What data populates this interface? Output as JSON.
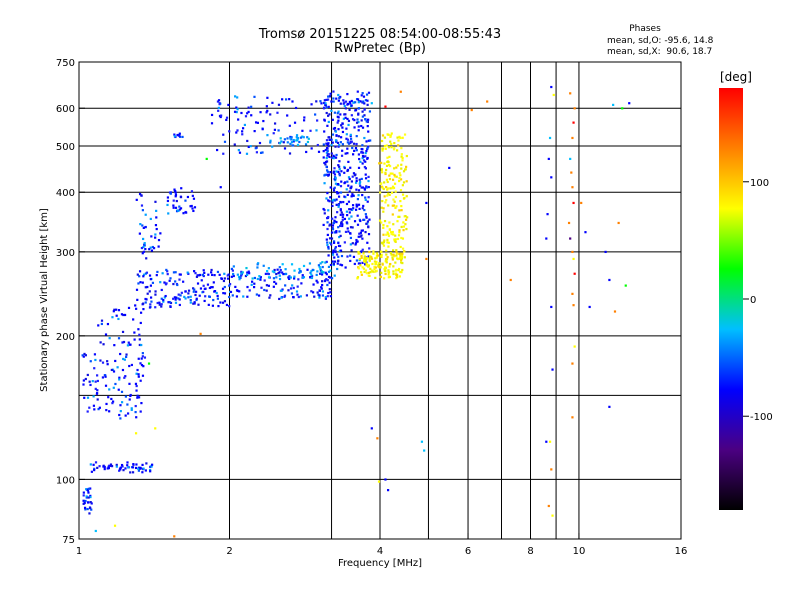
{
  "chart_data": {
    "type": "scatter",
    "title": "Tromsø 20151225 08:54:00-08:55:43",
    "subtitle": "RwPretec (Bp)",
    "xlabel": "Frequency [MHz]",
    "ylabel": "Stationary phase Virtual Height [km]",
    "xscale": "log",
    "yscale": "log",
    "xlim": [
      1,
      16
    ],
    "ylim": [
      75,
      750
    ],
    "xticks": [
      1,
      2,
      4,
      6,
      8,
      10,
      16
    ],
    "xtick_labels": [
      "1",
      "2",
      "4",
      "6",
      "8",
      "10",
      "16"
    ],
    "yticks": [
      75,
      100,
      200,
      300,
      400,
      500,
      600,
      750
    ],
    "ytick_labels": [
      "75",
      "100",
      "200",
      "300",
      "400",
      "500",
      "600",
      "750"
    ],
    "extra_vertical_gridlines": [
      3.2,
      5.0,
      7.0,
      9.0
    ],
    "extra_horizontal_gridlines": [
      150
    ],
    "grid": true,
    "phase_header": {
      "title": "Phases",
      "line_o": "mean, sd,O: -95.6, 14.8",
      "line_x": "mean, sd,X:  90.6, 18.7"
    },
    "colorbar": {
      "label": "[deg]",
      "range": [
        -180,
        180
      ],
      "ticks": [
        100,
        0,
        -100
      ],
      "tick_labels": [
        "100",
        "0",
        "-100"
      ],
      "colors": [
        "#000000",
        "#4b0082",
        "#0000ff",
        "#00bfff",
        "#00ff00",
        "#ffff00",
        "#ff8000",
        "#ff0000"
      ]
    },
    "series": [
      {
        "traces": [
          {
            "f0": 1.01,
            "f1": 1.07,
            "h0": 85,
            "h1": 96,
            "n": 30,
            "c": "blue"
          },
          {
            "f0": 1.05,
            "f1": 1.4,
            "h0": 104,
            "h1": 108,
            "n": 60,
            "c": "blue"
          },
          {
            "f0": 1.02,
            "f1": 1.35,
            "h0": 135,
            "h1": 185,
            "n": 110,
            "c": "blue"
          },
          {
            "f0": 1.1,
            "f1": 1.35,
            "h0": 190,
            "h1": 230,
            "n": 40,
            "c": "blue"
          },
          {
            "f0": 1.3,
            "f1": 2.0,
            "h0": 230,
            "h1": 275,
            "n": 170,
            "c": "blue"
          },
          {
            "f0": 2.0,
            "f1": 3.2,
            "h0": 240,
            "h1": 275,
            "n": 140,
            "c": "blue"
          },
          {
            "f0": 2.0,
            "f1": 3.3,
            "h0": 285,
            "h1": 265,
            "n": 60,
            "c": "sky"
          },
          {
            "f0": 1.3,
            "f1": 1.45,
            "h0": 290,
            "h1": 400,
            "n": 40,
            "c": "blue"
          },
          {
            "f0": 1.5,
            "f1": 1.7,
            "h0": 360,
            "h1": 410,
            "n": 40,
            "c": "blue"
          },
          {
            "f0": 1.55,
            "f1": 1.6,
            "h0": 520,
            "h1": 530,
            "n": 10,
            "c": "blue"
          },
          {
            "f0": 1.85,
            "f1": 3.2,
            "h0": 480,
            "h1": 640,
            "n": 120,
            "c": "blue"
          },
          {
            "f0": 2.4,
            "f1": 2.9,
            "h0": 505,
            "h1": 525,
            "n": 30,
            "c": "sky"
          },
          {
            "f0": 3.1,
            "f1": 3.8,
            "h0": 280,
            "h1": 650,
            "n": 520,
            "c": "blue"
          },
          {
            "f0": 3.6,
            "f1": 4.5,
            "h0": 265,
            "h1": 300,
            "n": 140,
            "c": "yellow"
          },
          {
            "f0": 4.0,
            "f1": 4.5,
            "h0": 290,
            "h1": 530,
            "n": 200,
            "c": "yellow"
          }
        ]
      },
      {
        "points": [
          {
            "x": 1.08,
            "y": 78,
            "c": "#00bfff"
          },
          {
            "x": 1.18,
            "y": 80,
            "c": "#ffff00"
          },
          {
            "x": 1.55,
            "y": 76,
            "c": "#ff8000"
          },
          {
            "x": 1.3,
            "y": 125,
            "c": "#ffff00"
          },
          {
            "x": 1.42,
            "y": 128,
            "c": "#ffff00"
          },
          {
            "x": 1.38,
            "y": 175,
            "c": "#00ff00"
          },
          {
            "x": 1.75,
            "y": 202,
            "c": "#ff8000"
          },
          {
            "x": 1.92,
            "y": 410,
            "c": "#0000ff"
          },
          {
            "x": 1.8,
            "y": 470,
            "c": "#00ff00"
          },
          {
            "x": 3.85,
            "y": 128,
            "c": "#0000ff"
          },
          {
            "x": 3.95,
            "y": 122,
            "c": "#ff8000"
          },
          {
            "x": 4.1,
            "y": 100,
            "c": "#0000ff"
          },
          {
            "x": 4.15,
            "y": 95,
            "c": "#0000ff"
          },
          {
            "x": 3.98,
            "y": 99,
            "c": "#ffff00"
          },
          {
            "x": 4.85,
            "y": 120,
            "c": "#00bfff"
          },
          {
            "x": 4.9,
            "y": 115,
            "c": "#00bfff"
          },
          {
            "x": 4.95,
            "y": 290,
            "c": "#ff8000"
          },
          {
            "x": 4.95,
            "y": 380,
            "c": "#0000ff"
          },
          {
            "x": 5.5,
            "y": 450,
            "c": "#0000ff"
          },
          {
            "x": 6.1,
            "y": 595,
            "c": "#ff8000"
          },
          {
            "x": 6.55,
            "y": 620,
            "c": "#ff8000"
          },
          {
            "x": 7.3,
            "y": 262,
            "c": "#ff8000"
          },
          {
            "x": 4.4,
            "y": 650,
            "c": "#ff8000"
          },
          {
            "x": 4.1,
            "y": 605,
            "c": "#ff0000"
          },
          {
            "x": 3.85,
            "y": 615,
            "c": "#00bfff"
          },
          {
            "x": 8.6,
            "y": 120,
            "c": "#0000ff"
          },
          {
            "x": 8.6,
            "y": 320,
            "c": "#0000ff"
          },
          {
            "x": 8.65,
            "y": 360,
            "c": "#0000ff"
          },
          {
            "x": 8.7,
            "y": 470,
            "c": "#0000ff"
          },
          {
            "x": 8.75,
            "y": 520,
            "c": "#00bfff"
          },
          {
            "x": 8.8,
            "y": 430,
            "c": "#0000ff"
          },
          {
            "x": 8.8,
            "y": 230,
            "c": "#0000ff"
          },
          {
            "x": 8.85,
            "y": 170,
            "c": "#0000ff"
          },
          {
            "x": 8.8,
            "y": 665,
            "c": "#0000ff"
          },
          {
            "x": 8.9,
            "y": 640,
            "c": "#ffff00"
          },
          {
            "x": 8.7,
            "y": 88,
            "c": "#ff8000"
          },
          {
            "x": 8.85,
            "y": 84,
            "c": "#ffff00"
          },
          {
            "x": 8.75,
            "y": 120,
            "c": "#ffff00"
          },
          {
            "x": 8.8,
            "y": 105,
            "c": "#ff8000"
          },
          {
            "x": 9.6,
            "y": 470,
            "c": "#00bfff"
          },
          {
            "x": 9.7,
            "y": 520,
            "c": "#ff8000"
          },
          {
            "x": 9.75,
            "y": 560,
            "c": "#ff0000"
          },
          {
            "x": 9.8,
            "y": 600,
            "c": "#ff8000"
          },
          {
            "x": 9.6,
            "y": 645,
            "c": "#ff8000"
          },
          {
            "x": 9.65,
            "y": 440,
            "c": "#ff8000"
          },
          {
            "x": 9.7,
            "y": 410,
            "c": "#ff8000"
          },
          {
            "x": 9.75,
            "y": 380,
            "c": "#ff0000"
          },
          {
            "x": 9.55,
            "y": 345,
            "c": "#ff8000"
          },
          {
            "x": 9.6,
            "y": 320,
            "c": "#4b0082"
          },
          {
            "x": 9.7,
            "y": 300,
            "c": "#ff8000"
          },
          {
            "x": 9.75,
            "y": 290,
            "c": "#ffff00"
          },
          {
            "x": 9.8,
            "y": 270,
            "c": "#ff0000"
          },
          {
            "x": 9.7,
            "y": 245,
            "c": "#ff8000"
          },
          {
            "x": 9.75,
            "y": 232,
            "c": "#ff8000"
          },
          {
            "x": 9.8,
            "y": 190,
            "c": "#ffff00"
          },
          {
            "x": 9.7,
            "y": 175,
            "c": "#ff8000"
          },
          {
            "x": 9.7,
            "y": 135,
            "c": "#ff8000"
          },
          {
            "x": 10.1,
            "y": 380,
            "c": "#ff8000"
          },
          {
            "x": 10.3,
            "y": 330,
            "c": "#0000ff"
          },
          {
            "x": 10.5,
            "y": 230,
            "c": "#0000ff"
          },
          {
            "x": 11.3,
            "y": 300,
            "c": "#0000ff"
          },
          {
            "x": 11.5,
            "y": 142,
            "c": "#0000ff"
          },
          {
            "x": 11.7,
            "y": 610,
            "c": "#00bfff"
          },
          {
            "x": 12.0,
            "y": 345,
            "c": "#ff8000"
          },
          {
            "x": 12.2,
            "y": 600,
            "c": "#00ff00"
          },
          {
            "x": 12.4,
            "y": 255,
            "c": "#00ff00"
          },
          {
            "x": 12.6,
            "y": 615,
            "c": "#0000ff"
          },
          {
            "x": 11.8,
            "y": 225,
            "c": "#ff8000"
          },
          {
            "x": 11.5,
            "y": 262,
            "c": "#0000ff"
          }
        ]
      }
    ]
  }
}
